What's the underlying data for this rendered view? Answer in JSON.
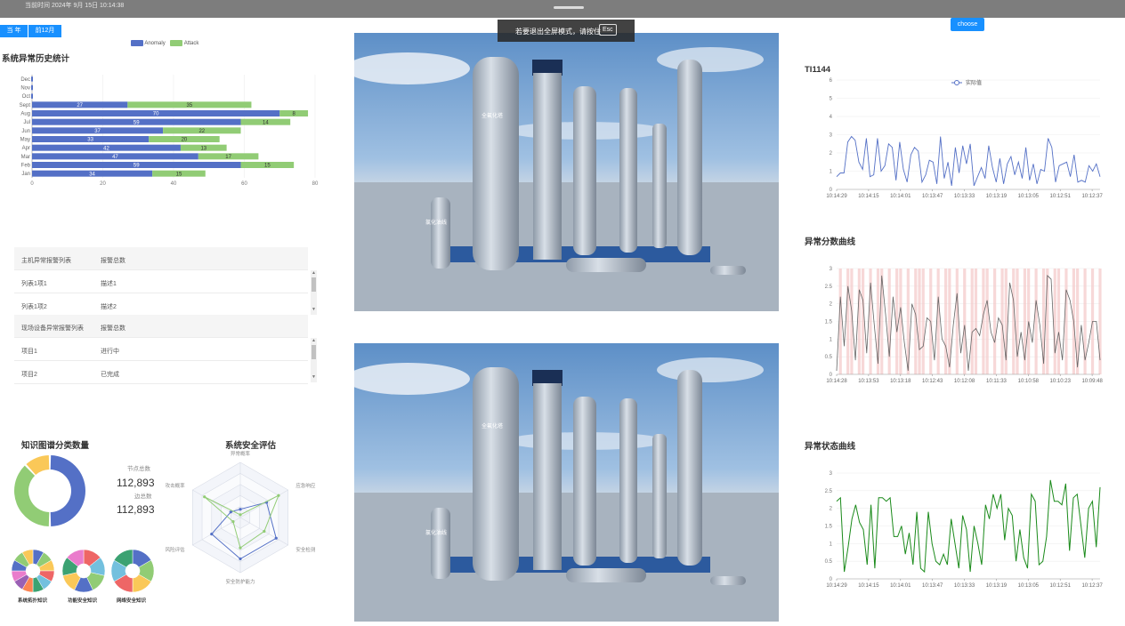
{
  "topbar": {
    "time": "当前时间 2024年 9月 15日 10:14:38"
  },
  "exit_notice": {
    "text": "若要退出全屏模式，请按住",
    "key": "Esc"
  },
  "buttons": {
    "year": "当 年",
    "last12": "前12月",
    "choose": "choose"
  },
  "history": {
    "title": "系统异常历史统计",
    "legend": [
      "Anomaly",
      "Attack"
    ],
    "colors": {
      "anomaly": "#5470c6",
      "attack": "#91cc75"
    }
  },
  "chart_data": [
    {
      "type": "bar",
      "title": "系统异常历史统计",
      "orientation": "horizontal",
      "stacked": true,
      "categories": [
        "Jan",
        "Feb",
        "Mar",
        "Apr",
        "May",
        "Jun",
        "Jul",
        "Aug",
        "Sept",
        "Oct",
        "Nov",
        "Dec"
      ],
      "series": [
        {
          "name": "Anomaly",
          "values": [
            34,
            59,
            47,
            42,
            33,
            37,
            59,
            70,
            27,
            0,
            0,
            0
          ]
        },
        {
          "name": "Attack",
          "values": [
            15,
            15,
            17,
            13,
            20,
            22,
            14,
            8,
            35,
            0,
            0,
            0
          ]
        }
      ],
      "xlim": [
        0,
        80
      ],
      "xticks": [
        0,
        20,
        40,
        60,
        80
      ],
      "legend_position": "top-center"
    },
    {
      "type": "line",
      "title": "TI1144",
      "series_name": "实际值",
      "color": "#5470c6",
      "ylim": [
        0,
        6
      ],
      "yticks": [
        0,
        1,
        2,
        3,
        4,
        5,
        6
      ],
      "xticks": [
        "10:14:29",
        "10:14:15",
        "10:14:01",
        "10:13:47",
        "10:13:33",
        "10:13:19",
        "10:13:05",
        "10:12:51",
        "10:12:37"
      ],
      "values": [
        0.7,
        0.9,
        0.9,
        2.6,
        2.9,
        2.7,
        1.5,
        1.1,
        2.8,
        0.7,
        0.8,
        2.8,
        1.0,
        1.3,
        2.5,
        2.3,
        0.5,
        2.6,
        1.1,
        0.4,
        1.9,
        2.3,
        2.1,
        0.4,
        0.8,
        1.6,
        1.5,
        0.3,
        2.9,
        0.6,
        1.5,
        0.2,
        2.3,
        0.9,
        2.4,
        1.4,
        2.5,
        0.2,
        0.7,
        1.2,
        0.6,
        2.4,
        1.2,
        0.4,
        1.7,
        0.3,
        1.4,
        1.8,
        0.8,
        1.5,
        0.6,
        2.3,
        0.5,
        1.4,
        0.3,
        1.1,
        1.0,
        2.8,
        2.3,
        0.4,
        1.3,
        1.4,
        1.5,
        0.7,
        1.9,
        0.4,
        0.5,
        0.4,
        1.3,
        1.0,
        1.4,
        0.7
      ]
    },
    {
      "type": "line",
      "title": "异常分数曲线",
      "color": "#666666",
      "band_color": "#f4c7c7",
      "ylim": [
        0,
        3
      ],
      "yticks": [
        0,
        0.5,
        1,
        1.5,
        2,
        2.5,
        3
      ],
      "xticks": [
        "10:14:28",
        "10:13:53",
        "10:13:18",
        "10:12:43",
        "10:12:08",
        "10:11:33",
        "10:10:58",
        "10:10:23",
        "10:09:48"
      ],
      "values": [
        0.1,
        2.2,
        0.8,
        2.5,
        1.8,
        0.4,
        2.4,
        2.1,
        0.6,
        2.6,
        1.4,
        0.3,
        2.8,
        1.7,
        0.5,
        2.2,
        1.2,
        1.9,
        0.9,
        0.1,
        2.0,
        1.7,
        0.7,
        0.8,
        1.6,
        1.5,
        0.4,
        2.2,
        1.0,
        0.8,
        0.2,
        1.4,
        2.3,
        0.6,
        1.4,
        0.1,
        1.2,
        1.3,
        1.1,
        1.7,
        2.1,
        1.2,
        0.9,
        1.6,
        1.4,
        0.4,
        2.6,
        2.1,
        0.5,
        1.2,
        0.4,
        1.5,
        0.9,
        2.1,
        1.4,
        0.3,
        2.8,
        2.7,
        0.6,
        1.2,
        0.4,
        2.4,
        2.1,
        1.5,
        0.2,
        1.4,
        0.4,
        0.9,
        1.5,
        1.5,
        0.4
      ],
      "bands": [
        1,
        3,
        4,
        6,
        7,
        9,
        11,
        12,
        14,
        16,
        17,
        19,
        21,
        22,
        23,
        25,
        27,
        29,
        30,
        32,
        34,
        36,
        37,
        39,
        40,
        42,
        44,
        45,
        47,
        48,
        50,
        51,
        53,
        55,
        56,
        58,
        59,
        61,
        63,
        64,
        66,
        68,
        70
      ]
    },
    {
      "type": "line",
      "title": "异常状态曲线",
      "color": "#1a8a1a",
      "ylim": [
        0,
        3
      ],
      "yticks": [
        0,
        0.5,
        1,
        1.5,
        2,
        2.5,
        3
      ],
      "xticks": [
        "10:14:29",
        "10:14:15",
        "10:14:01",
        "10:13:47",
        "10:13:33",
        "10:13:19",
        "10:13:05",
        "10:12:51",
        "10:12:37"
      ],
      "values": [
        2.2,
        2.3,
        0.2,
        0.9,
        1.7,
        2.1,
        1.6,
        1.4,
        0.4,
        2.1,
        0.3,
        2.3,
        2.3,
        2.2,
        2.3,
        1.2,
        1.2,
        1.5,
        0.7,
        1.3,
        0.4,
        1.9,
        0.3,
        0.2,
        1.9,
        1.0,
        0.5,
        0.4,
        0.7,
        0.4,
        1.7,
        1.0,
        0.3,
        1.8,
        1.4,
        0.2,
        1.5,
        1.0,
        0.4,
        2.1,
        1.7,
        2.4,
        2.0,
        2.4,
        1.1,
        2.0,
        1.8,
        0.5,
        1.4,
        0.6,
        0.3,
        2.4,
        2.2,
        0.4,
        0.5,
        1.2,
        2.8,
        2.2,
        2.2,
        2.1,
        2.7,
        0.8,
        2.3,
        2.4,
        1.5,
        0.6,
        2.0,
        2.2,
        0.9,
        2.6
      ]
    },
    {
      "type": "pie",
      "title": "知识图谱分类数量",
      "donut": true,
      "slices": [
        {
          "value": 50,
          "color": "#5470c6"
        },
        {
          "value": 38,
          "color": "#91cc75"
        },
        {
          "value": 12,
          "color": "#fac858"
        }
      ]
    },
    {
      "type": "radar",
      "title": "系统安全评估",
      "indicators": [
        "异常概率",
        "应急响应",
        "安全检测",
        "安全防护能力",
        "风险评估",
        "攻击概率"
      ],
      "series": [
        {
          "color": "#5470c6",
          "values": [
            0.15,
            0.55,
            0.75,
            0.75,
            0.6,
            0.2
          ]
        },
        {
          "color": "#91cc75",
          "values": [
            0.05,
            0.8,
            0.5,
            0.55,
            0.15,
            0.75
          ]
        }
      ]
    }
  ],
  "tables": {
    "host": {
      "headers": [
        "主机异常报警列表",
        "报警总数"
      ],
      "rows": [
        [
          "列表1项1",
          "描述1"
        ],
        [
          "列表1项2",
          "描述2"
        ]
      ]
    },
    "field": {
      "headers": [
        "现场设备异常报警列表",
        "报警总数"
      ],
      "rows": [
        [
          "项目1",
          "进行中"
        ],
        [
          "项目2",
          "已完成"
        ]
      ]
    }
  },
  "kg": {
    "title": "知识图谱分类数量",
    "node_label": "节点总数",
    "node_value": "112,893",
    "edge_label": "边总数",
    "edge_value": "112,893"
  },
  "radar": {
    "title": "系统安全评估"
  },
  "mini_rings": [
    {
      "label": "系统拓扑知识",
      "colors": [
        "#5470c6",
        "#91cc75",
        "#fac858",
        "#ee6666",
        "#73c0de",
        "#3ba272",
        "#fc8452",
        "#9a60b4",
        "#ea7ccc",
        "#5470c6",
        "#91cc75",
        "#fac858"
      ]
    },
    {
      "label": "功能安全知识",
      "colors": [
        "#ee6666",
        "#73c0de",
        "#91cc75",
        "#5470c6",
        "#fac858",
        "#3ba272",
        "#ea7ccc"
      ]
    },
    {
      "label": "网络安全知识",
      "colors": [
        "#5470c6",
        "#91cc75",
        "#fac858",
        "#ee6666",
        "#73c0de",
        "#3ba272"
      ]
    }
  ],
  "right": {
    "ti_title": "TI1144",
    "ti_legend": "实际值",
    "score_title": "异常分数曲线",
    "state_title": "异常状态曲线"
  },
  "scene": {
    "label_big": "全氟化塔",
    "label_small": "氯化油线"
  }
}
